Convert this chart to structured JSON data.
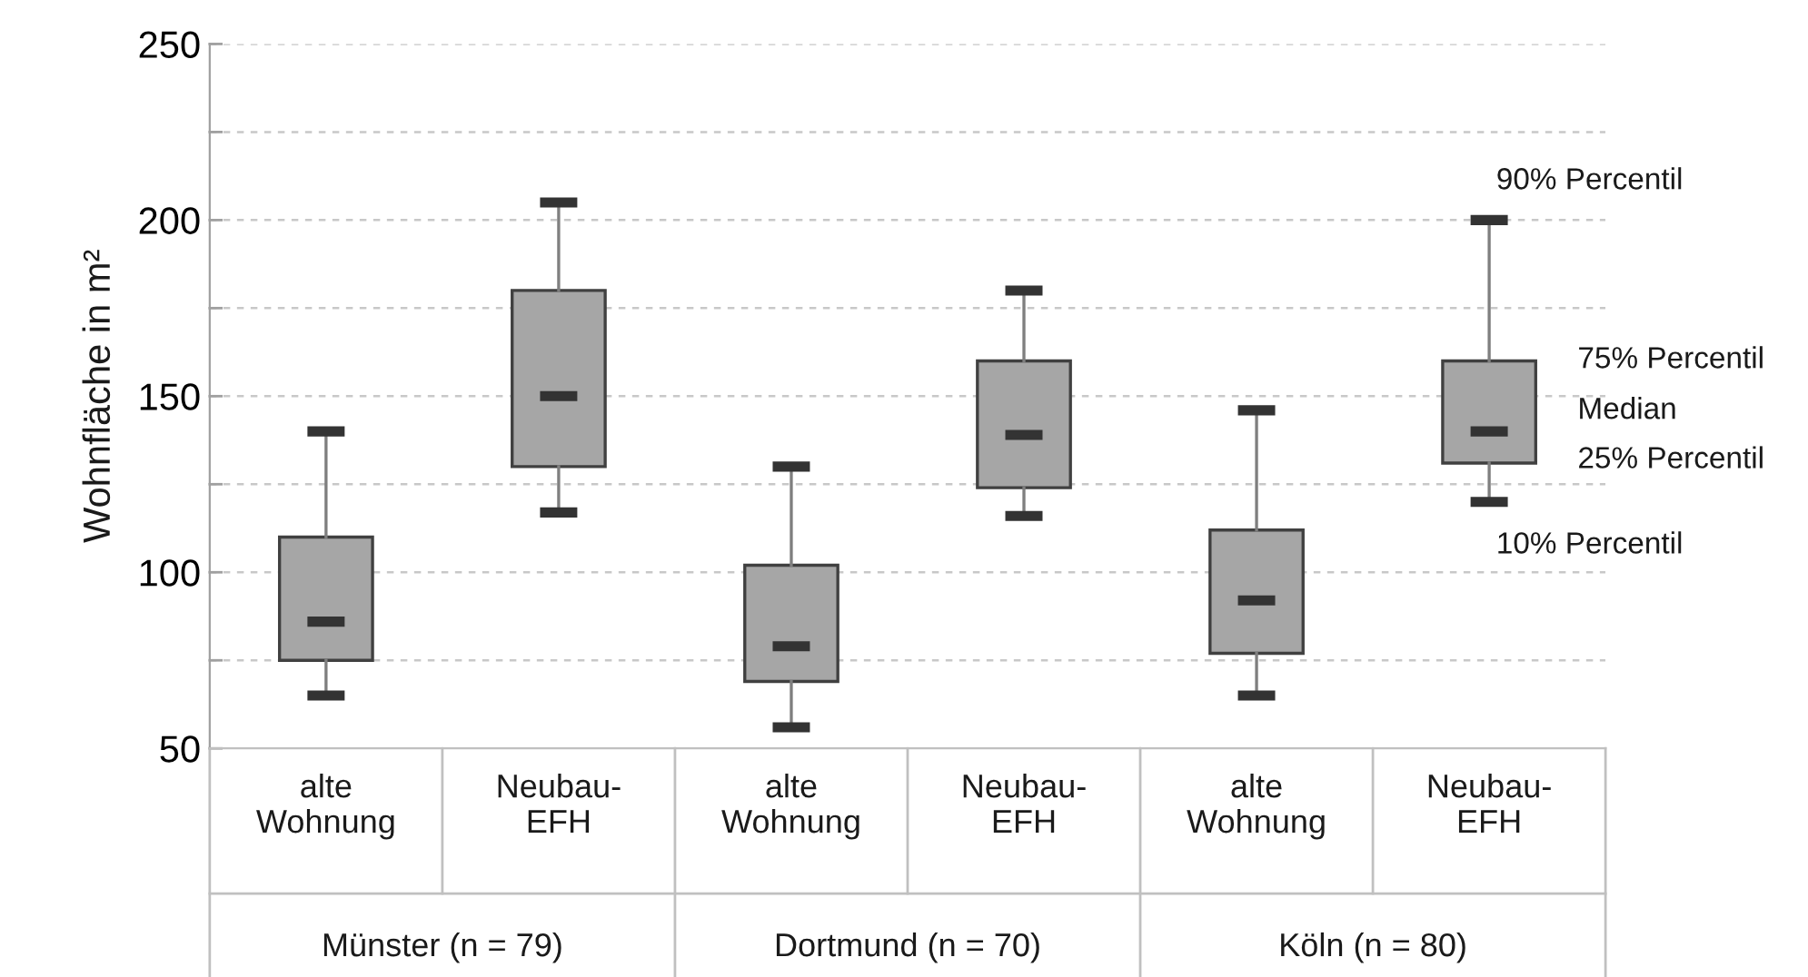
{
  "chart_data": {
    "type": "box",
    "ylabel": "Wohnfläche in m²",
    "categories": [
      "alte\nWohnung",
      "Neubau-\nEFH",
      "alte\nWohnung",
      "Neubau-\nEFH",
      "alte\nWohnung",
      "Neubau-\nEFH"
    ],
    "boxes": [
      {
        "low": 65,
        "q1": 75,
        "median": 86,
        "q3": 110,
        "high": 140
      },
      {
        "low": 117,
        "q1": 130,
        "median": 150,
        "q3": 180,
        "high": 205
      },
      {
        "low": 56,
        "q1": 69,
        "median": 79,
        "q3": 102,
        "high": 130
      },
      {
        "low": 116,
        "q1": 124,
        "median": 139,
        "q3": 160,
        "high": 180
      },
      {
        "low": 65,
        "q1": 77,
        "median": 92,
        "q3": 112,
        "high": 146
      },
      {
        "low": 120,
        "q1": 131,
        "median": 140,
        "q3": 160,
        "high": 200
      }
    ],
    "color": "#a6a6a6",
    "ylim": [
      50,
      250
    ],
    "yticks": [
      50,
      {
        "value": 75,
        "label": null
      },
      100,
      {
        "value": 125,
        "label": null
      },
      150,
      {
        "value": 175,
        "label": null
      },
      200,
      {
        "value": 225,
        "label": null
      },
      250
    ],
    "grid": "y",
    "annotations": [
      "90% Percentil",
      "75% Percentil",
      "Median",
      "25% Percentil",
      "10% Percentil",
      "Münster (n = 79)",
      "Dortmund (n = 70)",
      "Köln (n = 80)"
    ]
  }
}
